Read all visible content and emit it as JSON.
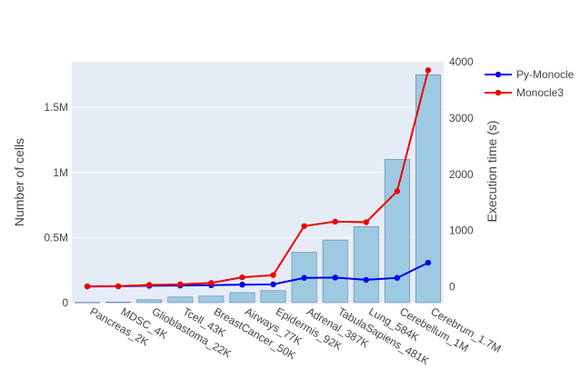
{
  "chart_data": {
    "type": "bar+line",
    "categories": [
      "Pancreas_2K",
      "MDSC_4K",
      "Glioblastoma_22K",
      "Tcell_43K",
      "BreastCancer_50K",
      "Airways_77K",
      "Epidermis_92K",
      "Adrenal_387K",
      "TabulaSapiens_481K",
      "Lung_584K",
      "Cerebellum_1M",
      "Cerebrum_1.7M"
    ],
    "bars": {
      "axis": "left",
      "values": [
        2000,
        4000,
        22000,
        43000,
        50000,
        77000,
        92000,
        387000,
        481000,
        584000,
        1100000,
        1750000
      ],
      "color": "#9ecae1",
      "border": "#5b7fa8"
    },
    "series": [
      {
        "name": "Py-Monocle",
        "axis": "right",
        "color": "#0000ee",
        "values": [
          8,
          10,
          20,
          25,
          30,
          40,
          45,
          160,
          165,
          125,
          160,
          430
        ]
      },
      {
        "name": "Monocle3",
        "axis": "right",
        "color": "#ee0000",
        "values": [
          10,
          12,
          35,
          45,
          70,
          170,
          210,
          1080,
          1160,
          1150,
          1700,
          3850
        ]
      }
    ],
    "y_left": {
      "title": "Number of cells",
      "range": [
        0,
        1850000
      ],
      "ticks": [
        0,
        500000,
        1000000,
        1500000
      ],
      "tick_labels": [
        "0",
        "0.5M",
        "1M",
        "1.5M"
      ]
    },
    "y_right": {
      "title": "Execution time (s)",
      "range": [
        -280,
        4000
      ],
      "ticks": [
        0,
        1000,
        2000,
        3000,
        4000
      ],
      "tick_labels": [
        "0",
        "1000",
        "2000",
        "3000",
        "4000"
      ]
    },
    "grid": true,
    "legend": "top-right",
    "colors": {
      "plot_bg": "#e5ecf6",
      "grid": "#ffffff"
    }
  }
}
